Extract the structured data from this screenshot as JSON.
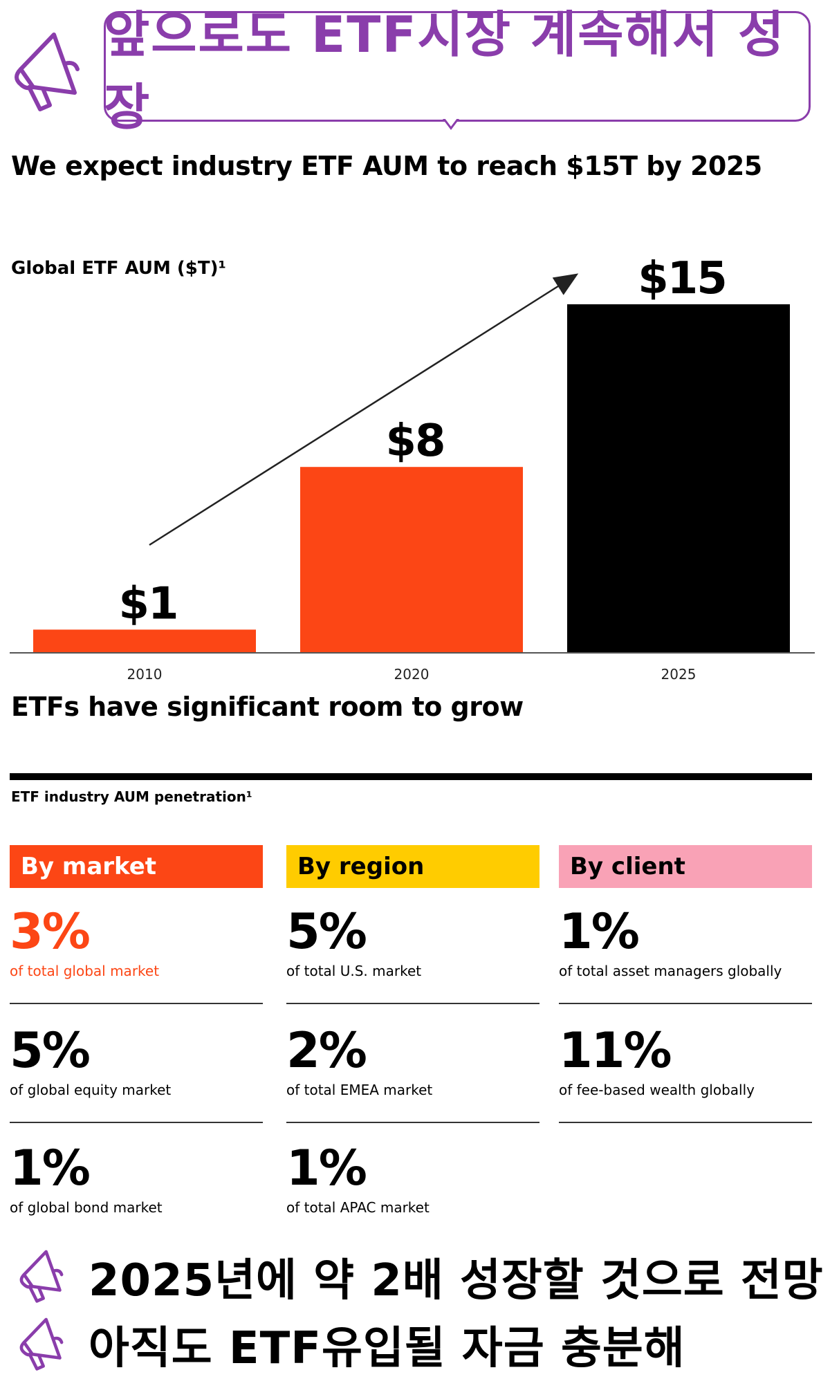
{
  "banner": {
    "title": "앞으로도 ETF시장 계속해서 성장"
  },
  "headline": "We expect industry ETF AUM to reach $15T by 2025",
  "chart_data": {
    "type": "bar",
    "title": "Global ETF AUM ($T)¹",
    "categories": [
      "2010",
      "2020",
      "2025"
    ],
    "values": [
      1,
      8,
      15
    ],
    "value_labels": [
      "$1",
      "$8",
      "$15"
    ],
    "colors": [
      "#fc4615",
      "#fc4615",
      "#000000"
    ],
    "xlabel": "",
    "ylabel": "",
    "ylim": [
      0,
      15
    ],
    "grid": false,
    "trend_arrow": true
  },
  "section2": {
    "heading": "ETFs have significant room to grow",
    "subheading": "ETF industry AUM penetration¹"
  },
  "penetration": [
    {
      "label": "By market",
      "header_color": "#fc4615",
      "header_text_color": "#ffffff",
      "value_color": "#fc4615",
      "items": [
        {
          "value": "3%",
          "desc": "of total global market",
          "highlight": true
        },
        {
          "value": "5%",
          "desc": "of global equity  market"
        },
        {
          "value": "1%",
          "desc": "of global bond market"
        }
      ]
    },
    {
      "label": "By region",
      "header_color": "#ffcc00",
      "header_text_color": "#000000",
      "items": [
        {
          "value": "5%",
          "desc": "of total U.S. market"
        },
        {
          "value": "2%",
          "desc": "of total EMEA market"
        },
        {
          "value": "1%",
          "desc": "of total APAC market"
        }
      ]
    },
    {
      "label": "By client",
      "header_color": "#f9a2b6",
      "header_text_color": "#000000",
      "items": [
        {
          "value": "1%",
          "desc": "of total asset managers globally"
        },
        {
          "value": "11%",
          "desc": "of fee-based wealth globally"
        }
      ]
    }
  ],
  "takeaways": [
    {
      "text": "2025년에 약 2배 성장할 것으로 전망"
    },
    {
      "text": "아직도 ETF유입될 자금 충분해"
    }
  ],
  "icons": {
    "banner": "megaphone-icon",
    "bullet": "megaphone-icon"
  },
  "accent_color": "#8a3dab"
}
